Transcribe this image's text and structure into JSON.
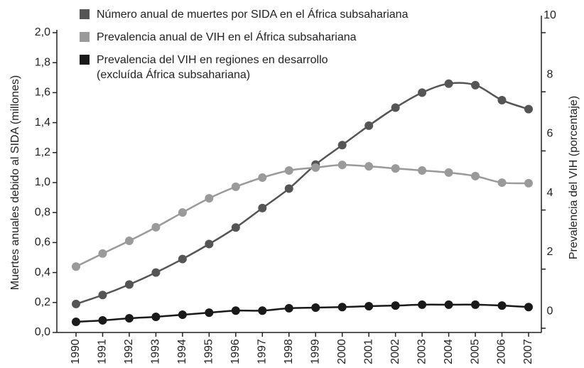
{
  "chart_data": {
    "type": "line",
    "ylabel": "Muertes anuales debido al SIDA (millones)",
    "y2label": "Prevalencia del VIH (porcentaje)",
    "categories": [
      "1990",
      "1991",
      "1992",
      "1993",
      "1994",
      "1995",
      "1996",
      "1997",
      "1998",
      "1999",
      "2000",
      "2001",
      "2002",
      "2003",
      "2004",
      "2005",
      "2006",
      "2007"
    ],
    "ylim": [
      0,
      2.0
    ],
    "yticks": [
      {
        "value": 0,
        "label": "0,0"
      },
      {
        "value": 0.2,
        "label": "0,2"
      },
      {
        "value": 0.4,
        "label": "0,4"
      },
      {
        "value": 0.6,
        "label": "0,6"
      },
      {
        "value": 0.8,
        "label": "0,8"
      },
      {
        "value": 1.0,
        "label": "1,0"
      },
      {
        "value": 1.2,
        "label": "1,2"
      },
      {
        "value": 1.4,
        "label": "1,4"
      },
      {
        "value": 1.6,
        "label": "1,6"
      },
      {
        "value": 1.8,
        "label": "1,8"
      },
      {
        "value": 2.0,
        "label": "2,0"
      }
    ],
    "y2lim": [
      -0.72,
      10
    ],
    "y2ticks": [
      0,
      2,
      4,
      6,
      8,
      10
    ],
    "series": [
      {
        "name": "Número anual de muertes por SIDA en el África subsahariana",
        "color": "#555555",
        "values": [
          0.19,
          0.25,
          0.32,
          0.4,
          0.49,
          0.59,
          0.7,
          0.83,
          0.96,
          1.12,
          1.25,
          1.38,
          1.5,
          1.6,
          1.66,
          1.65,
          1.55,
          1.49
        ]
      },
      {
        "name": "Prevalencia anual de VIH en el África subsahariana",
        "color": "#9a9a9a",
        "axis": "y2",
        "values": [
          1.51,
          1.95,
          2.38,
          2.84,
          3.34,
          3.82,
          4.21,
          4.52,
          4.76,
          4.86,
          4.95,
          4.9,
          4.83,
          4.76,
          4.69,
          4.57,
          4.35,
          4.33
        ]
      },
      {
        "name": "Prevalencia del VIH en regiones en desarrollo\n(excluída África subsahariana)",
        "color": "#1a1a1a",
        "axis": "y2",
        "values": [
          -0.36,
          -0.31,
          -0.24,
          -0.19,
          -0.12,
          -0.05,
          0.02,
          0.02,
          0.1,
          0.12,
          0.14,
          0.17,
          0.19,
          0.22,
          0.22,
          0.22,
          0.19,
          0.14
        ]
      }
    ]
  }
}
